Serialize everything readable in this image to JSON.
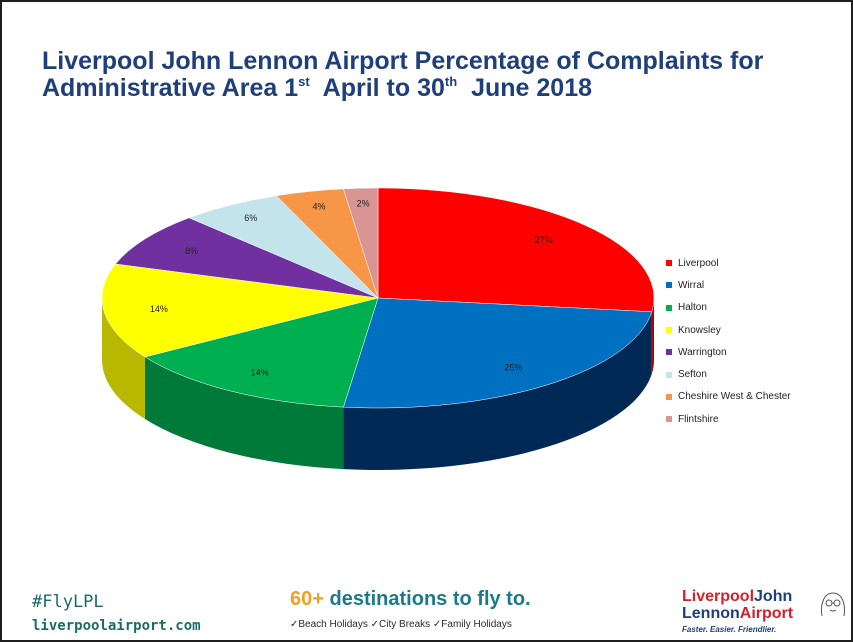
{
  "title": {
    "part1": "Liverpool John Lennon Airport Percentage of Complaints for",
    "part2": "Administrative Area 1",
    "sup1": "st",
    "part3": "April to 30",
    "sup2": "th",
    "part4": "June 2018"
  },
  "chart_data": {
    "type": "pie",
    "three_d": true,
    "categories": [
      "Liverpool",
      "Wirral",
      "Halton",
      "Knowsley",
      "Warrington",
      "Sefton",
      "Cheshire West & Chester",
      "Flintshire"
    ],
    "values": [
      27,
      25,
      14,
      14,
      8,
      6,
      4,
      2
    ],
    "labels": [
      "27%",
      "25%",
      "14%",
      "14%",
      "8%",
      "6%",
      "4%",
      "2%"
    ],
    "colors": [
      "#ff0000",
      "#0070c0",
      "#00b050",
      "#ffff00",
      "#7030a0",
      "#c4e4ec",
      "#f79646",
      "#d99594"
    ],
    "side_colors": [
      "#b00000",
      "#002a55",
      "#007a38",
      "#b8b800",
      "#4a1c70",
      "#8ea8ae",
      "#b0662f",
      "#9b6a69"
    ],
    "legend_position": "right"
  },
  "footer": {
    "hashtag": "#FlyLPL",
    "website": "liverpoolairport.com",
    "destinations_number": "60+",
    "destinations_text": "destinations to fly to.",
    "holidays": "✓Beach Holidays ✓City Breaks ✓Family Holidays",
    "logo_line1_red": "Liverpool",
    "logo_line1_blue": "John",
    "logo_line2_blue": "Lennon",
    "logo_line2_red": "Airport",
    "tagline": "Faster. Easier. Friendlier."
  }
}
